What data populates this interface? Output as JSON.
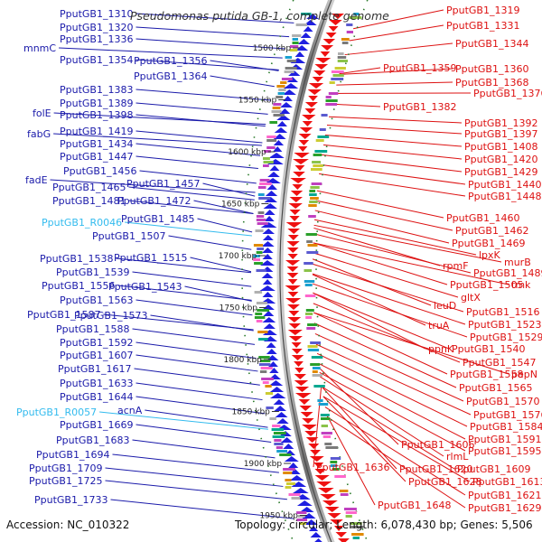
{
  "title": "Pseudomonas putida GB-1, complete genome",
  "footer": {
    "accession": "Accession: NC_010322",
    "summary": "Topology: circular; Length: 6,078,430 bp; Genes: 5,506"
  },
  "colors": {
    "forward_strand": "#1f1fe0",
    "reverse_strand": "#ee1111",
    "left_label": "#1a1aaa",
    "right_label": "#dd1111",
    "rna_label": "#33bbee",
    "backbone": "#8a8a8a"
  },
  "scale_ticks": [
    "1500 kbp",
    "1550 kbp",
    "1600 kbp",
    "1650 kbp",
    "1700 kbp",
    "1750 kbp",
    "1800 kbp",
    "1850 kbp",
    "1900 kbp",
    "1950 kbp"
  ],
  "left_labels": [
    {
      "text": "PputGB1_1310",
      "kind": "gene"
    },
    {
      "text": "PputGB1_1320",
      "kind": "gene"
    },
    {
      "text": "mnmC",
      "kind": "gene"
    },
    {
      "text": "PputGB1_1336",
      "kind": "gene"
    },
    {
      "text": "PputGB1_1354",
      "kind": "gene"
    },
    {
      "text": "PputGB1_1356",
      "kind": "gene"
    },
    {
      "text": "PputGB1_1364",
      "kind": "gene"
    },
    {
      "text": "PputGB1_1383",
      "kind": "gene"
    },
    {
      "text": "PputGB1_1389",
      "kind": "gene"
    },
    {
      "text": "folE",
      "kind": "gene"
    },
    {
      "text": "PputGB1_1398",
      "kind": "gene"
    },
    {
      "text": "fabG",
      "kind": "gene"
    },
    {
      "text": "PputGB1_1419",
      "kind": "gene"
    },
    {
      "text": "PputGB1_1434",
      "kind": "gene"
    },
    {
      "text": "PputGB1_1447",
      "kind": "gene"
    },
    {
      "text": "PputGB1_1456",
      "kind": "gene"
    },
    {
      "text": "fadE",
      "kind": "gene"
    },
    {
      "text": "PputGB1_1465",
      "kind": "gene"
    },
    {
      "text": "PputGB1_1457",
      "kind": "gene"
    },
    {
      "text": "PputGB1_1481",
      "kind": "gene"
    },
    {
      "text": "PputGB1_1472",
      "kind": "gene"
    },
    {
      "text": "PputGB1_R0046",
      "kind": "rna"
    },
    {
      "text": "PputGB1_1485",
      "kind": "gene"
    },
    {
      "text": "PputGB1_1507",
      "kind": "gene"
    },
    {
      "text": "PputGB1_1538",
      "kind": "gene"
    },
    {
      "text": "PputGB1_1515",
      "kind": "gene"
    },
    {
      "text": "PputGB1_1539",
      "kind": "gene"
    },
    {
      "text": "PputGB1_1556",
      "kind": "gene"
    },
    {
      "text": "PputGB1_1543",
      "kind": "gene"
    },
    {
      "text": "PputGB1_1563",
      "kind": "gene"
    },
    {
      "text": "PputGB1_1587",
      "kind": "gene"
    },
    {
      "text": "PputGB1_1573",
      "kind": "gene"
    },
    {
      "text": "PputGB1_1588",
      "kind": "gene"
    },
    {
      "text": "PputGB1_1592",
      "kind": "gene"
    },
    {
      "text": "PputGB1_1607",
      "kind": "gene"
    },
    {
      "text": "PputGB1_1617",
      "kind": "gene"
    },
    {
      "text": "PputGB1_1633",
      "kind": "gene"
    },
    {
      "text": "PputGB1_1644",
      "kind": "gene"
    },
    {
      "text": "PputGB1_R0057",
      "kind": "rna"
    },
    {
      "text": "acnA",
      "kind": "gene"
    },
    {
      "text": "PputGB1_1669",
      "kind": "gene"
    },
    {
      "text": "PputGB1_1683",
      "kind": "gene"
    },
    {
      "text": "PputGB1_1694",
      "kind": "gene"
    },
    {
      "text": "PputGB1_1709",
      "kind": "gene"
    },
    {
      "text": "PputGB1_1725",
      "kind": "gene"
    },
    {
      "text": "PputGB1_1733",
      "kind": "gene"
    }
  ],
  "right_labels": [
    {
      "text": "PputGB1_1319"
    },
    {
      "text": "PputGB1_1331"
    },
    {
      "text": "PputGB1_1344"
    },
    {
      "text": "PputGB1_1359"
    },
    {
      "text": "PputGB1_1360"
    },
    {
      "text": "PputGB1_1368"
    },
    {
      "text": "PputGB1_1376"
    },
    {
      "text": "PputGB1_1382"
    },
    {
      "text": "PputGB1_1392"
    },
    {
      "text": "PputGB1_1397"
    },
    {
      "text": "PputGB1_1408"
    },
    {
      "text": "PputGB1_1420"
    },
    {
      "text": "PputGB1_1429"
    },
    {
      "text": "PputGB1_1440"
    },
    {
      "text": "PputGB1_1448"
    },
    {
      "text": "PputGB1_1460"
    },
    {
      "text": "PputGB1_1462"
    },
    {
      "text": "PputGB1_1469"
    },
    {
      "text": "lpxK"
    },
    {
      "text": "rpmF"
    },
    {
      "text": "murB"
    },
    {
      "text": "PputGB1_1489"
    },
    {
      "text": "PputGB1_1505"
    },
    {
      "text": "tmk"
    },
    {
      "text": "gltX"
    },
    {
      "text": "leuD"
    },
    {
      "text": "PputGB1_1516"
    },
    {
      "text": "PputGB1_1523"
    },
    {
      "text": "truA"
    },
    {
      "text": "PputGB1_1529"
    },
    {
      "text": "ppnK"
    },
    {
      "text": "PputGB1_1540"
    },
    {
      "text": "PputGB1_1547"
    },
    {
      "text": "PputGB1_1558"
    },
    {
      "text": "pepN"
    },
    {
      "text": "PputGB1_1565"
    },
    {
      "text": "PputGB1_1570"
    },
    {
      "text": "PputGB1_1576"
    },
    {
      "text": "PputGB1_1584"
    },
    {
      "text": "PputGB1_1591"
    },
    {
      "text": "PputGB1_1606"
    },
    {
      "text": "PputGB1_1595"
    },
    {
      "text": "rlmL"
    },
    {
      "text": "PputGB1_1636"
    },
    {
      "text": "PputGB1_1620"
    },
    {
      "text": "PputGB1_1609"
    },
    {
      "text": "PputGB1_1628"
    },
    {
      "text": "PputGB1_1613"
    },
    {
      "text": "PputGB1_1621"
    },
    {
      "text": "PputGB1_1648"
    },
    {
      "text": "PputGB1_1629"
    }
  ]
}
